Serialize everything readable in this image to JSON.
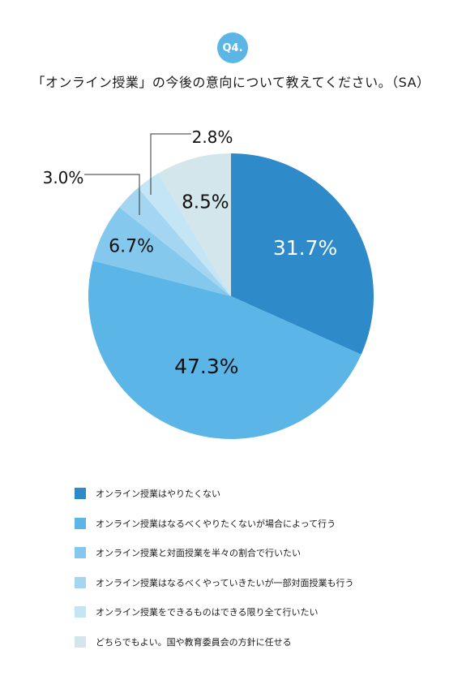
{
  "badge": "Q4.",
  "title": "「オンライン授業」の今後の意向について教えてください。（SA）",
  "chart_data": {
    "type": "pie",
    "start_angle": "12 o'clock",
    "direction": "clockwise",
    "slices": [
      {
        "label": "オンライン授業はやりたくない",
        "value": 31.7,
        "display": "31.7%",
        "color": "#2e8ac8"
      },
      {
        "label": "オンライン授業はなるべくやりたくないが場合によって行う",
        "value": 47.3,
        "display": "47.3%",
        "color": "#5bb5e6"
      },
      {
        "label": "オンライン授業と対面授業を半々の割合で行いたい",
        "value": 6.7,
        "display": "6.7%",
        "color": "#84c8ee"
      },
      {
        "label": "オンライン授業はなるべくやっていきたいが一部対面授業も行う",
        "value": 3.0,
        "display": "3.0%",
        "color": "#a5d6f1"
      },
      {
        "label": "オンライン授業をできるものはできる限り全て行いたい",
        "value": 2.8,
        "display": "2.8%",
        "color": "#c3e5f4"
      },
      {
        "label": "どちらでもよい。国や教育委員会の方針に任せる",
        "value": 8.5,
        "display": "8.5%",
        "color": "#d3e6ec"
      }
    ],
    "legend_position": "bottom"
  }
}
